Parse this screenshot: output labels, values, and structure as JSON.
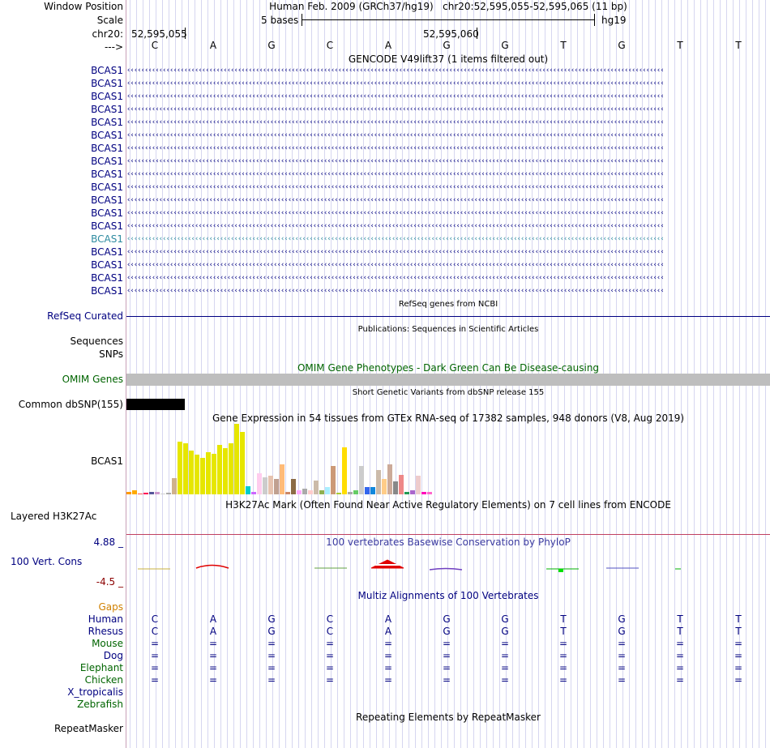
{
  "labels": {
    "window_position": "Window Position",
    "scale": "Scale",
    "chr": "chr20:",
    "arrow": "--->",
    "bcas1": [
      "BCAS1",
      "BCAS1",
      "BCAS1",
      "BCAS1",
      "BCAS1",
      "BCAS1",
      "BCAS1",
      "BCAS1",
      "BCAS1",
      "BCAS1",
      "BCAS1",
      "BCAS1",
      "BCAS1",
      "BCAS1",
      "BCAS1",
      "BCAS1",
      "BCAS1",
      "BCAS1"
    ],
    "refseq": "RefSeq Curated",
    "sequences": "Sequences",
    "snps": "SNPs",
    "omim": "OMIM Genes",
    "dbsnp": "Common dbSNP(155)",
    "gtex": "BCAS1",
    "h3k27ac": "Layered H3K27Ac",
    "cons_max": "4.88 _",
    "cons": "100 Vert. Cons",
    "cons_min": "-4.5 _",
    "gaps": "Gaps",
    "species": [
      {
        "name": "Human",
        "color": "navy"
      },
      {
        "name": "Rhesus",
        "color": "navy"
      },
      {
        "name": "Mouse",
        "color": "green"
      },
      {
        "name": "Dog",
        "color": "navy"
      },
      {
        "name": "Elephant",
        "color": "green"
      },
      {
        "name": "Chicken",
        "color": "green"
      },
      {
        "name": "X_tropicalis",
        "color": "navy"
      },
      {
        "name": "Zebrafish",
        "color": "green"
      }
    ],
    "repeatmasker": "RepeatMasker"
  },
  "header": {
    "assembly": "Human Feb. 2009 (GRCh37/hg19)",
    "position": "chr20:52,595,055-52,595,065 (11 bp)",
    "scale_text": "5 bases",
    "scale_db": "hg19",
    "coord1": "52,595,055",
    "coord2": "52,595,060"
  },
  "bases": [
    "C",
    "A",
    "G",
    "C",
    "A",
    "G",
    "G",
    "T",
    "G",
    "T",
    "T"
  ],
  "rhesus": [
    "C",
    "A",
    "G",
    "C",
    "A",
    "G",
    "G",
    "T",
    "G",
    "T",
    "T"
  ],
  "eq": "=",
  "titles": {
    "gencode": "GENCODE V49lift37 (1 items filtered out)",
    "refseq": "RefSeq genes from NCBI",
    "pubs": "Publications: Sequences in Scientific Articles",
    "omim": "OMIM Gene Phenotypes - Dark Green Can Be Disease-causing",
    "dbsnp": "Short Genetic Variants from dbSNP release 155",
    "gtex": "Gene Expression in 54 tissues from GTEx RNA-seq of 17382 samples, 948 donors (V8, Aug 2019)",
    "h3k27ac": "H3K27Ac Mark (Often Found Near Active Regulatory Elements) on 7 cell lines from ENCODE",
    "phylop": "100 vertebrates Basewise Conservation by PhyloP",
    "multiz": "Multiz Alignments of 100 Vertebrates",
    "repeat": "Repeating Elements by RepeatMasker"
  },
  "colors": {
    "navy": "#000080",
    "green": "#006400",
    "omim_bar": "#bebebe",
    "dbsnp_bar": "#000000",
    "conservation_up": "#e00000",
    "h3k27ac_line": "#c04060"
  },
  "gtex_bars": [
    0.04,
    0.06,
    0.0,
    0.02,
    0.04,
    0.03,
    0.0,
    0.02,
    0.23,
    0.75,
    0.72,
    0.62,
    0.56,
    0.52,
    0.6,
    0.58,
    0.7,
    0.66,
    0.72,
    1.0,
    0.88,
    0.12,
    0.03,
    0.3,
    0.24,
    0.26,
    0.22,
    0.43,
    0.04,
    0.22,
    0.06,
    0.08,
    0.06,
    0.2,
    0.06,
    0.1,
    0.4,
    0.02,
    0.67,
    0.04,
    0.06,
    0.4,
    0.1,
    0.1,
    0.34,
    0.22,
    0.42,
    0.18,
    0.28,
    0.04,
    0.06,
    0.26,
    0.04,
    0.04
  ],
  "gtex_colors": [
    "#ff9900",
    "#ffaa00",
    "#ff5555",
    "#ff0055",
    "#555599",
    "#cc99cc",
    "#d0d0d0",
    "#aaaaaa",
    "#cfb28c",
    "#e6e600",
    "#e6e600",
    "#e6e600",
    "#e6e600",
    "#e6e600",
    "#e6e600",
    "#e6e600",
    "#e6e600",
    "#e6e600",
    "#e6e600",
    "#e6e600",
    "#e6e600",
    "#00cccc",
    "#cc66ff",
    "#ffccee",
    "#cccccc",
    "#e6c3b0",
    "#c0a090",
    "#ffbb77",
    "#cc8866",
    "#8b6b45",
    "#ffaaff",
    "#aaaaaa",
    "#ffcccc",
    "#ccbbaa",
    "#8fb050",
    "#aaeeff",
    "#cc9977",
    "#aacc33",
    "#ffdd00",
    "#aaaaaa",
    "#66cc66",
    "#cccccc",
    "#3366ee",
    "#1188dd",
    "#ccbbaa",
    "#ffcc88",
    "#ccaa99",
    "#888888",
    "#ee8888",
    "#229955",
    "#aa66cc",
    "#eecccc",
    "#ff00bb",
    "#ff66cc"
  ]
}
